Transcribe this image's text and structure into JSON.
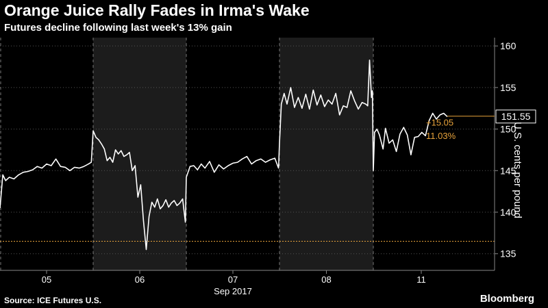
{
  "title": "Orange Juice Rally Fades in Irma's Wake",
  "subtitle": "Futures decline following last week's 13% gain",
  "source": "Source: ICE Futures U.S.",
  "brand": "Bloomberg",
  "colors": {
    "background": "#000000",
    "shade": "#1c1c1c",
    "line": "#ffffff",
    "accent": "#e8a33b",
    "grid": "#555555"
  },
  "chart_data": {
    "type": "line",
    "title": "Orange Juice Rally Fades in Irma's Wake",
    "subtitle": "Futures decline following last week's 13% gain",
    "ylabel": "U.S. cents per pound",
    "xlabel": "Sep 2017",
    "ylim": [
      133,
      161
    ],
    "y_ticks": [
      135,
      140,
      145,
      150,
      155,
      160
    ],
    "x_tick_labels": [
      "05",
      "06",
      "07",
      "08",
      "11"
    ],
    "x_tick_days": [
      0,
      1,
      2,
      3,
      4
    ],
    "shaded_days": [
      1,
      3
    ],
    "grid": true,
    "reference_line": 136.5,
    "last_value": "151.55",
    "change": "+15.05",
    "change_pct": "11.03%",
    "series": [
      {
        "x": [
          0.0,
          0.03,
          0.06,
          0.1,
          0.15,
          0.2,
          0.25,
          0.3,
          0.35,
          0.4,
          0.45,
          0.5,
          0.55,
          0.6,
          0.65,
          0.7,
          0.75,
          0.8,
          0.85,
          0.9,
          0.95,
          0.98,
          1.0,
          1.03,
          1.06,
          1.09,
          1.12,
          1.15,
          1.18,
          1.21,
          1.24,
          1.27,
          1.3,
          1.33,
          1.36,
          1.39,
          1.42,
          1.45,
          1.48,
          1.51,
          1.54,
          1.57,
          1.6,
          1.63,
          1.66,
          1.69,
          1.72,
          1.75,
          1.78,
          1.81,
          1.84,
          1.87,
          1.9,
          1.93,
          1.96,
          1.99,
          2.0,
          2.04,
          2.08,
          2.12,
          2.16,
          2.2,
          2.25,
          2.3,
          2.35,
          2.4,
          2.45,
          2.5,
          2.55,
          2.6,
          2.65,
          2.7,
          2.75,
          2.8,
          2.85,
          2.9,
          2.95,
          2.99,
          3.0,
          3.02,
          3.05,
          3.08,
          3.12,
          3.16,
          3.2,
          3.24,
          3.28,
          3.32,
          3.36,
          3.4,
          3.44,
          3.48,
          3.52,
          3.56,
          3.6,
          3.64,
          3.68,
          3.72,
          3.76,
          3.8,
          3.84,
          3.88,
          3.92,
          3.94,
          3.96,
          3.98,
          3.99,
          4.0,
          4.01,
          4.03,
          4.05,
          4.08,
          4.1,
          4.13,
          4.16,
          4.19,
          4.22,
          4.25,
          4.28,
          4.31,
          4.34,
          4.37,
          4.4,
          4.43,
          4.46,
          4.49,
          4.52,
          4.55,
          4.58,
          4.61
        ],
        "y": [
          140.5,
          144.5,
          143.8,
          144.2,
          144.0,
          144.5,
          144.8,
          144.9,
          145.1,
          145.5,
          145.3,
          145.8,
          145.6,
          146.4,
          145.5,
          145.4,
          145.0,
          145.4,
          145.3,
          145.5,
          145.8,
          146.0,
          149.8,
          149.0,
          148.7,
          148.2,
          147.6,
          146.2,
          146.6,
          146.0,
          147.5,
          147.0,
          147.4,
          146.7,
          146.9,
          147.2,
          145.0,
          145.6,
          141.8,
          143.3,
          139.0,
          135.5,
          139.5,
          141.2,
          140.6,
          141.6,
          140.4,
          140.8,
          141.5,
          140.6,
          141.1,
          141.4,
          140.8,
          141.1,
          141.6,
          138.8,
          144.2,
          145.5,
          145.6,
          145.1,
          145.8,
          145.3,
          146.1,
          144.8,
          145.7,
          145.2,
          145.6,
          145.9,
          146.0,
          146.4,
          146.7,
          145.8,
          146.2,
          146.4,
          146.0,
          146.3,
          146.5,
          145.3,
          148.3,
          153.0,
          154.3,
          153.0,
          155.0,
          152.6,
          153.8,
          152.5,
          154.2,
          152.4,
          154.7,
          152.9,
          154.1,
          152.7,
          153.5,
          153.0,
          154.3,
          151.7,
          152.8,
          152.6,
          154.6,
          153.4,
          152.4,
          153.2,
          153.0,
          152.8,
          158.3,
          153.8,
          154.6,
          145.0,
          149.6,
          150.0,
          149.3,
          147.6,
          150.1,
          148.3,
          148.7,
          147.3,
          149.4,
          150.2,
          149.3,
          146.9,
          149.0,
          149.1,
          149.6,
          149.2,
          151.0,
          151.9,
          151.2,
          151.7,
          151.9,
          151.5
        ]
      }
    ]
  }
}
